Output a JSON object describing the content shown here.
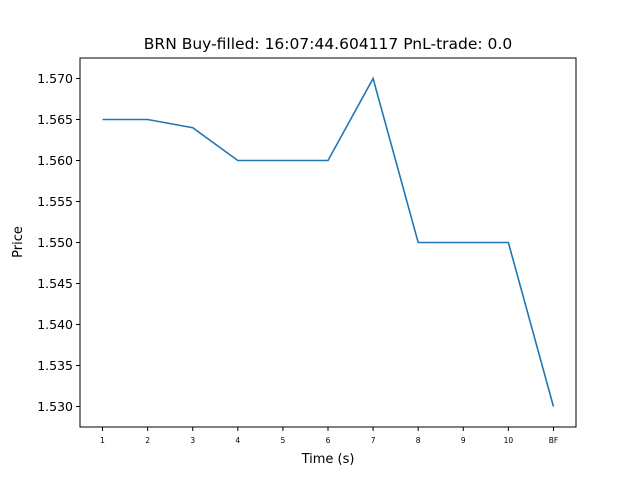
{
  "chart_data": {
    "type": "line",
    "title": "BRN  Buy-filled:  16:07:44.604117  PnL-trade:  0.0",
    "xlabel": "Time (s)",
    "ylabel": "Price",
    "categories": [
      "1",
      "2",
      "3",
      "4",
      "5",
      "6",
      "7",
      "8",
      "9",
      "10",
      "BF"
    ],
    "series": [
      {
        "values": [
          1.565,
          1.565,
          1.564,
          1.56,
          1.56,
          1.56,
          1.57,
          1.55,
          1.55,
          1.55,
          1.53
        ],
        "color": "#1f77b4"
      }
    ],
    "ylim": [
      1.5275,
      1.5725
    ],
    "yticks": [
      "1.530",
      "1.535",
      "1.540",
      "1.545",
      "1.550",
      "1.555",
      "1.560",
      "1.565",
      "1.570"
    ],
    "grid": false,
    "legend": "none"
  }
}
